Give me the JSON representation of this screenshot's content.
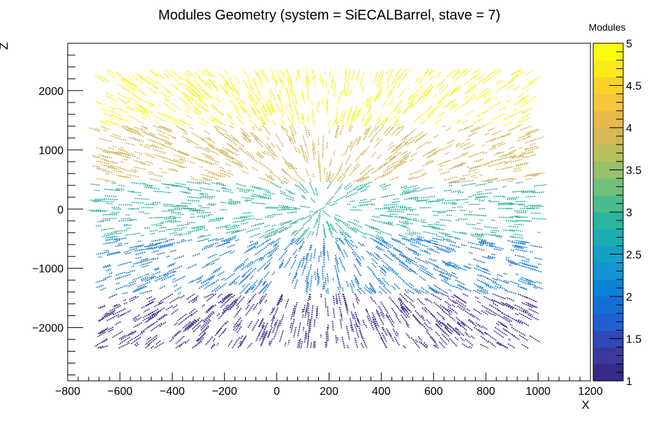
{
  "chart_data": {
    "type": "scatter",
    "title": "Modules Geometry (system = SiECALBarrel, stave = 7)",
    "xlabel": "X",
    "ylabel": "Z",
    "xlim": [
      -800,
      1200
    ],
    "ylim": [
      -2900,
      2800
    ],
    "xticks": [
      "−800",
      "−600",
      "−400",
      "−200",
      "0",
      "200",
      "400",
      "600",
      "800",
      "1000",
      "1200"
    ],
    "yticks": [
      "−2000",
      "−1000",
      "0",
      "1000",
      "2000"
    ],
    "grid": false,
    "colorbar": {
      "title": "Modules",
      "range": [
        1,
        5
      ],
      "ticks": [
        "1",
        "1.5",
        "2",
        "2.5",
        "3",
        "3.5",
        "4",
        "4.5",
        "5"
      ],
      "palette": [
        "#352a87",
        "#3a3a9c",
        "#2f4ab8",
        "#1f5fd0",
        "#1470d6",
        "#0a81d8",
        "#1693d2",
        "#13a2c6",
        "#1aadb4",
        "#2ab5a0",
        "#4cbb8c",
        "#72bf7a",
        "#96c06a",
        "#b9be5e",
        "#d4b957",
        "#e9ba4b",
        "#f5c53b",
        "#f9d22a",
        "#faea1c",
        "#f9fb0e"
      ]
    },
    "series": [
      {
        "module": 1,
        "color": "#3e2d8c",
        "z_range": [
          -2350,
          -1430
        ],
        "x_range": [
          -680,
          990
        ]
      },
      {
        "module": 2,
        "color": "#1a7ad4",
        "z_range": [
          -1430,
          -490
        ],
        "x_range": [
          -680,
          1010
        ]
      },
      {
        "module": 3,
        "color": "#2fb59e",
        "z_range": [
          -490,
          460
        ],
        "x_range": [
          -700,
          1010
        ]
      },
      {
        "module": 4,
        "color": "#d2b65c",
        "z_range": [
          460,
          1410
        ],
        "x_range": [
          -700,
          1000
        ]
      },
      {
        "module": 5,
        "color": "#f9f21d",
        "z_range": [
          1410,
          2360
        ],
        "x_range": [
          -680,
          990
        ]
      }
    ]
  }
}
